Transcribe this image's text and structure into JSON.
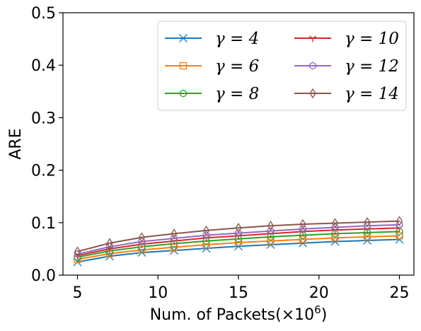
{
  "chart_data": {
    "type": "line",
    "xlabel": "Num. of Packets(×10⁶)",
    "xlabel_base": "Num. of Packets(×10",
    "xlabel_exp": "6",
    "xlabel_tail": ")",
    "ylabel": "ARE",
    "xlim": [
      4.1,
      25.9
    ],
    "ylim": [
      0.0,
      0.5
    ],
    "xticks": [
      5,
      10,
      15,
      20,
      25
    ],
    "xtick_labels": [
      "5",
      "10",
      "15",
      "20",
      "25"
    ],
    "yticks": [
      0.0,
      0.1,
      0.2,
      0.3,
      0.4,
      0.5
    ],
    "ytick_labels": [
      "0.0",
      "0.1",
      "0.2",
      "0.3",
      "0.4",
      "0.5"
    ],
    "grid": false,
    "legend_position": "top-right",
    "x": [
      5,
      7,
      9,
      11,
      13,
      15,
      17,
      19,
      21,
      23,
      25
    ],
    "series": [
      {
        "name": "γ = 4",
        "color": "#1f77b4",
        "marker": "x",
        "values": [
          0.025,
          0.036,
          0.043,
          0.047,
          0.051,
          0.055,
          0.058,
          0.061,
          0.064,
          0.066,
          0.068
        ]
      },
      {
        "name": "γ = 6",
        "color": "#ff7f0e",
        "marker": "square",
        "values": [
          0.03,
          0.041,
          0.048,
          0.053,
          0.058,
          0.062,
          0.065,
          0.068,
          0.071,
          0.073,
          0.075
        ]
      },
      {
        "name": "γ = 8",
        "color": "#2ca02c",
        "marker": "circle",
        "values": [
          0.034,
          0.046,
          0.054,
          0.06,
          0.065,
          0.069,
          0.073,
          0.076,
          0.079,
          0.081,
          0.083
        ]
      },
      {
        "name": "γ = 10",
        "color": "#d62728",
        "marker": "tri_down",
        "values": [
          0.037,
          0.05,
          0.059,
          0.065,
          0.071,
          0.075,
          0.079,
          0.083,
          0.086,
          0.088,
          0.09
        ]
      },
      {
        "name": "γ = 12",
        "color": "#9467bd",
        "marker": "hexagon",
        "values": [
          0.04,
          0.054,
          0.064,
          0.07,
          0.076,
          0.08,
          0.084,
          0.088,
          0.091,
          0.094,
          0.096
        ]
      },
      {
        "name": "γ = 14",
        "color": "#8c564b",
        "marker": "thin_diamond",
        "values": [
          0.045,
          0.061,
          0.072,
          0.079,
          0.085,
          0.09,
          0.094,
          0.097,
          0.099,
          0.101,
          0.103
        ]
      }
    ]
  }
}
